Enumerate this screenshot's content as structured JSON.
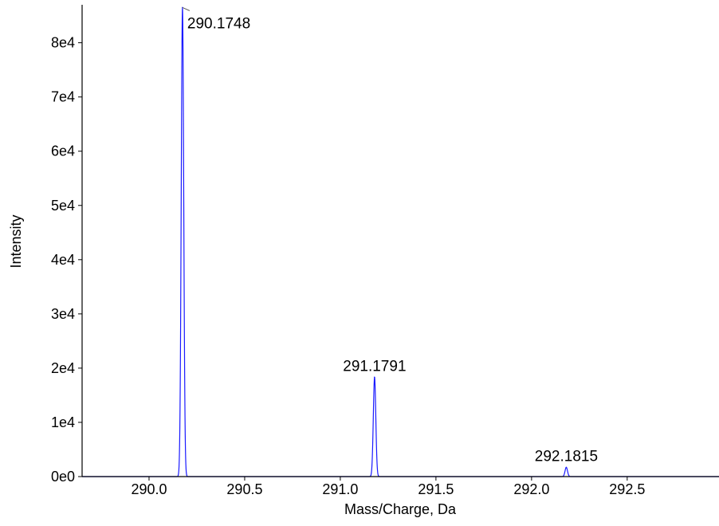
{
  "chart_data": {
    "type": "line",
    "title": "",
    "xlabel": "Mass/Charge, Da",
    "ylabel": "Intensity",
    "xlim": [
      289.65,
      292.98
    ],
    "ylim": [
      0,
      87000
    ],
    "grid": false,
    "legend": "none",
    "x_ticks": [
      290.0,
      290.5,
      291.0,
      291.5,
      292.0,
      292.5
    ],
    "x_tick_labels": [
      "290.0",
      "290.5",
      "291.0",
      "291.5",
      "292.0",
      "292.5"
    ],
    "y_ticks": [
      0,
      10000,
      20000,
      30000,
      40000,
      50000,
      60000,
      70000,
      80000
    ],
    "y_tick_labels": [
      "0e0",
      "1e4",
      "2e4",
      "3e4",
      "4e4",
      "5e4",
      "6e4",
      "7e4",
      "8e4"
    ],
    "series_color": "#1a1aff",
    "peaks": [
      {
        "mz": 290.1748,
        "intensity": 86500,
        "label": "290.1748"
      },
      {
        "mz": 291.1791,
        "intensity": 18300,
        "label": "291.1791"
      },
      {
        "mz": 292.1815,
        "intensity": 1700,
        "label": "292.1815"
      }
    ]
  }
}
